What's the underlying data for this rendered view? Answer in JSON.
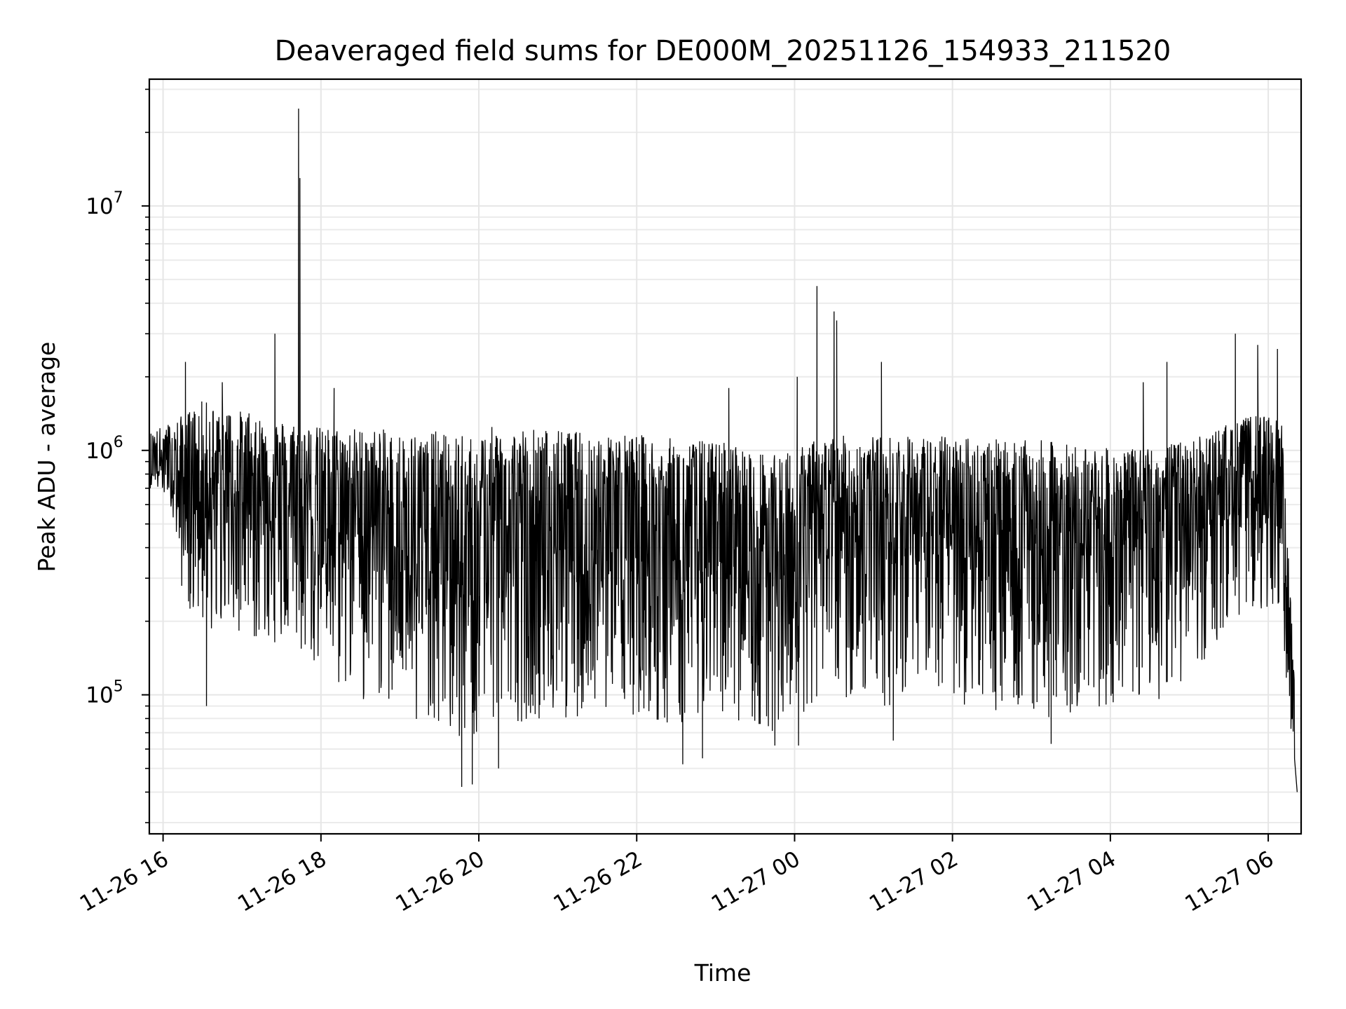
{
  "chart_data": {
    "type": "line",
    "title": "Deaveraged field sums for DE000M_20251126_154933_211520",
    "xlabel": "Time",
    "ylabel": "Peak ADU - average",
    "yscale": "log",
    "ylim": [
      27000,
      33000000
    ],
    "xlim": [
      "2025-11-26T15:49:33",
      "2025-11-27T06:25:00"
    ],
    "x_ticks": [
      {
        "t": "2025-11-26T16:00:00",
        "label": "11-26 16"
      },
      {
        "t": "2025-11-26T18:00:00",
        "label": "11-26 18"
      },
      {
        "t": "2025-11-26T20:00:00",
        "label": "11-26 20"
      },
      {
        "t": "2025-11-26T22:00:00",
        "label": "11-26 22"
      },
      {
        "t": "2025-11-27T00:00:00",
        "label": "11-27 00"
      },
      {
        "t": "2025-11-27T02:00:00",
        "label": "11-27 02"
      },
      {
        "t": "2025-11-27T04:00:00",
        "label": "11-27 04"
      },
      {
        "t": "2025-11-27T06:00:00",
        "label": "11-27 06"
      }
    ],
    "y_ticks": [
      {
        "value": 100000,
        "base": "10",
        "exp": "5"
      },
      {
        "value": 1000000,
        "base": "10",
        "exp": "6"
      },
      {
        "value": 10000000,
        "base": "10",
        "exp": "7"
      }
    ],
    "grid": true,
    "line_color": "#000000",
    "series": [
      {
        "x": [
          "2025-11-26T15:50:00",
          "2025-11-26T16:05:00",
          "2025-11-26T16:15:00",
          "2025-11-26T16:30:00",
          "2025-11-26T16:50:00",
          "2025-11-26T17:10:00",
          "2025-11-26T17:25:00",
          "2025-11-26T17:45:00",
          "2025-11-26T18:00:00",
          "2025-11-26T18:30:00",
          "2025-11-26T19:00:00",
          "2025-11-26T19:30:00",
          "2025-11-26T19:50:00",
          "2025-11-26T20:10:00",
          "2025-11-26T20:40:00",
          "2025-11-26T21:10:00",
          "2025-11-26T21:40:00",
          "2025-11-26T22:10:00",
          "2025-11-26T22:40:00",
          "2025-11-26T23:10:00",
          "2025-11-26T23:40:00",
          "2025-11-27T00:00:00",
          "2025-11-27T00:20:00",
          "2025-11-27T00:40:00",
          "2025-11-27T01:10:00",
          "2025-11-27T01:40:00",
          "2025-11-27T02:10:00",
          "2025-11-27T02:40:00",
          "2025-11-27T03:10:00",
          "2025-11-27T03:40:00",
          "2025-11-27T04:10:00",
          "2025-11-27T04:40:00",
          "2025-11-27T05:10:00",
          "2025-11-27T05:30:00",
          "2025-11-27T05:50:00",
          "2025-11-27T06:10:00",
          "2025-11-27T06:20:00"
        ],
        "median": [
          800000,
          850000,
          600000,
          650000,
          700000,
          650000,
          600000,
          600000,
          500000,
          450000,
          400000,
          300000,
          280000,
          350000,
          400000,
          420000,
          400000,
          380000,
          350000,
          350000,
          300000,
          320000,
          400000,
          450000,
          480000,
          450000,
          430000,
          400000,
          420000,
          430000,
          450000,
          480000,
          520000,
          600000,
          650000,
          600000,
          90000
        ],
        "upper": [
          1200000,
          1300000,
          1400000,
          1600000,
          1500000,
          1400000,
          1350000,
          1300000,
          1250000,
          1250000,
          1200000,
          1200000,
          1150000,
          1250000,
          1250000,
          1200000,
          1200000,
          1150000,
          1100000,
          1100000,
          950000,
          1000000,
          1150000,
          1150000,
          1150000,
          1150000,
          1150000,
          1100000,
          1100000,
          1050000,
          1000000,
          1050000,
          1150000,
          1300000,
          1400000,
          1350000,
          120000
        ],
        "lower": [
          700000,
          650000,
          250000,
          180000,
          180000,
          170000,
          160000,
          140000,
          110000,
          95000,
          85000,
          70000,
          55000,
          70000,
          80000,
          80000,
          85000,
          80000,
          70000,
          80000,
          70000,
          75000,
          90000,
          95000,
          90000,
          90000,
          90000,
          85000,
          80000,
          85000,
          90000,
          95000,
          120000,
          200000,
          220000,
          200000,
          45000
        ],
        "spikes": [
          {
            "t": "2025-11-26T16:17:00",
            "value": 2300000
          },
          {
            "t": "2025-11-26T16:45:00",
            "value": 1900000
          },
          {
            "t": "2025-11-26T17:25:00",
            "value": 3000000
          },
          {
            "t": "2025-11-26T17:43:00",
            "value": 25000000
          },
          {
            "t": "2025-11-26T17:44:00",
            "value": 13000000
          },
          {
            "t": "2025-11-26T18:10:00",
            "value": 1800000
          },
          {
            "t": "2025-11-26T23:10:00",
            "value": 1800000
          },
          {
            "t": "2025-11-27T00:02:00",
            "value": 2000000
          },
          {
            "t": "2025-11-27T00:17:00",
            "value": 4700000
          },
          {
            "t": "2025-11-27T00:30:00",
            "value": 3700000
          },
          {
            "t": "2025-11-27T00:32:00",
            "value": 3400000
          },
          {
            "t": "2025-11-27T01:06:00",
            "value": 2300000
          },
          {
            "t": "2025-11-27T04:25:00",
            "value": 1900000
          },
          {
            "t": "2025-11-27T04:43:00",
            "value": 2300000
          },
          {
            "t": "2025-11-27T05:35:00",
            "value": 3000000
          },
          {
            "t": "2025-11-27T05:52:00",
            "value": 2700000
          },
          {
            "t": "2025-11-27T06:07:00",
            "value": 2600000
          }
        ],
        "dips": [
          {
            "t": "2025-11-26T16:33:00",
            "value": 90000
          },
          {
            "t": "2025-11-26T19:47:00",
            "value": 42000
          },
          {
            "t": "2025-11-26T19:55:00",
            "value": 43000
          },
          {
            "t": "2025-11-26T20:15:00",
            "value": 50000
          },
          {
            "t": "2025-11-26T22:35:00",
            "value": 52000
          },
          {
            "t": "2025-11-26T22:50:00",
            "value": 55000
          },
          {
            "t": "2025-11-26T23:45:00",
            "value": 62000
          },
          {
            "t": "2025-11-27T00:03:00",
            "value": 62000
          },
          {
            "t": "2025-11-27T01:15:00",
            "value": 65000
          },
          {
            "t": "2025-11-27T03:15:00",
            "value": 63000
          },
          {
            "t": "2025-11-27T06:22:00",
            "value": 40000
          }
        ]
      }
    ]
  }
}
